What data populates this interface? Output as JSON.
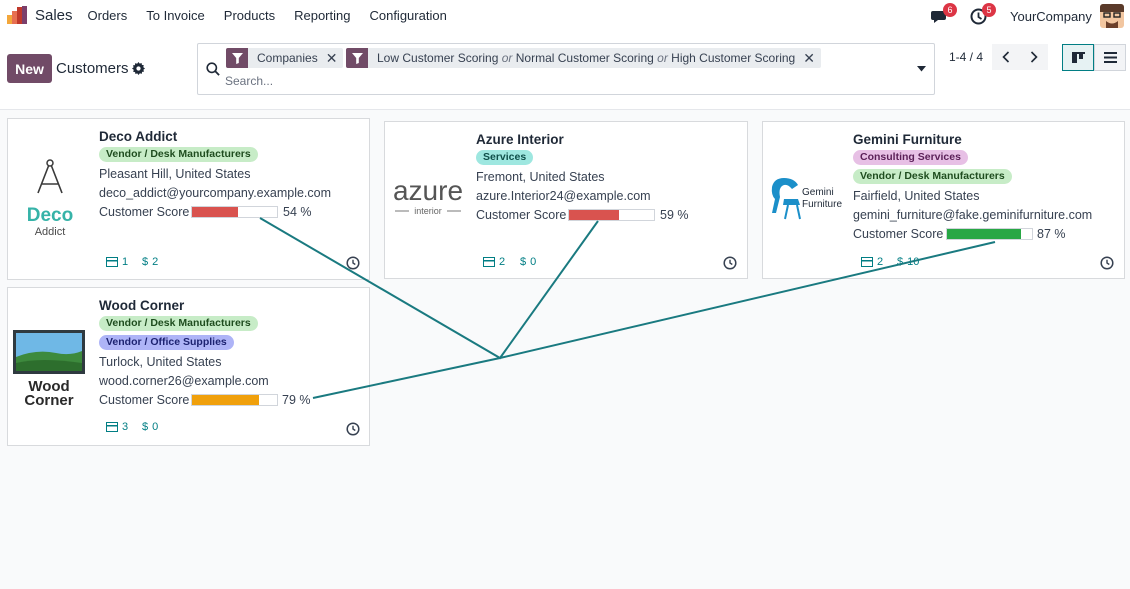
{
  "navbar": {
    "app_name": "Sales",
    "menu": [
      "Orders",
      "To Invoice",
      "Products",
      "Reporting",
      "Configuration"
    ],
    "messages_count": "6",
    "activities_count": "5",
    "company": "YourCompany"
  },
  "control_panel": {
    "new_label": "New",
    "title": "Customers",
    "facets": [
      {
        "icon": "filter-icon",
        "text": "Companies"
      },
      {
        "icon": "filter-icon",
        "parts": [
          "Low Customer Scoring",
          "or",
          "Normal Customer Scoring",
          "or",
          "High Customer Scoring"
        ]
      }
    ],
    "search_placeholder": "Search...",
    "pager": "1-4 / 4"
  },
  "cards": [
    {
      "name": "Deco Addict",
      "logo": {
        "line1": "Deco",
        "line2": "Addict"
      },
      "tags": [
        {
          "label": "Vendor / Desk Manufacturers",
          "color": "#c7ecc7"
        }
      ],
      "address": "Pleasant Hill, United States",
      "email": "deco_addict@yourcompany.example.com",
      "score_label": "Customer Score",
      "score": 54,
      "score_text": "54 %",
      "score_color": "#d9534f",
      "meetings": "1",
      "sales": "2"
    },
    {
      "name": "Azure Interior",
      "logo": {
        "line1": "azure",
        "line2": "interior"
      },
      "tags": [
        {
          "label": "Services",
          "color": "#9ee7e0"
        }
      ],
      "address": "Fremont, United States",
      "email": "azure.Interior24@example.com",
      "score_label": "Customer Score",
      "score": 59,
      "score_text": "59 %",
      "score_color": "#d9534f",
      "meetings": "2",
      "sales": "0"
    },
    {
      "name": "Gemini Furniture",
      "logo": {
        "line1": "Gemini",
        "line2": "Furniture"
      },
      "tags": [
        {
          "label": "Consulting Services",
          "color": "#e7c0e5"
        },
        {
          "label": "Vendor / Desk Manufacturers",
          "color": "#c7ecc7"
        }
      ],
      "address": "Fairfield, United States",
      "email": "gemini_furniture@fake.geminifurniture.com",
      "score_label": "Customer Score",
      "score": 87,
      "score_text": "87 %",
      "score_color": "#28a745",
      "meetings": "2",
      "sales": "10"
    },
    {
      "name": "Wood Corner",
      "logo": {
        "line1": "Wood",
        "line2": "Corner"
      },
      "tags": [
        {
          "label": "Vendor / Desk Manufacturers",
          "color": "#c7ecc7"
        },
        {
          "label": "Vendor / Office Supplies",
          "color": "#aeb4f7"
        }
      ],
      "address": "Turlock, United States",
      "email": "wood.corner26@example.com",
      "score_label": "Customer Score",
      "score": 79,
      "score_text": "79 %",
      "score_color": "#f0a00c",
      "meetings": "3",
      "sales": "0"
    }
  ],
  "colors": {
    "brand": "#714b67",
    "accent": "#017e84",
    "annotation": "#1a7a80"
  }
}
